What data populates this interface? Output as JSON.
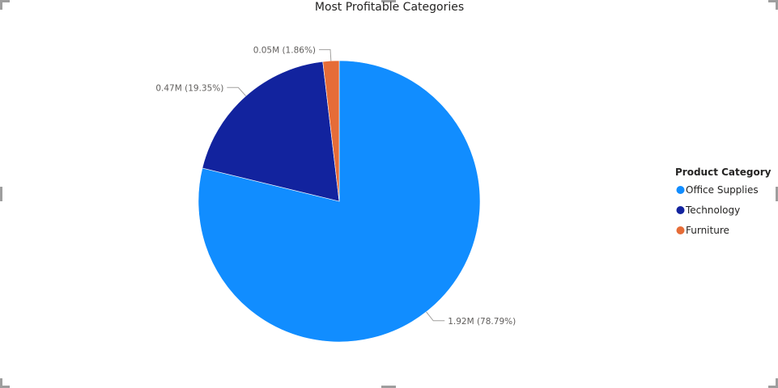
{
  "chart_data": {
    "type": "pie",
    "title": "Most Profitable Categories",
    "categories": [
      "Office Supplies",
      "Technology",
      "Furniture"
    ],
    "values": [
      1.92,
      0.47,
      0.05
    ],
    "percentages": [
      78.79,
      19.35,
      1.86
    ],
    "data_labels": [
      "1.92M (78.79%)",
      "0.47M (19.35%)",
      "0.05M (1.86%)"
    ],
    "colors": [
      "#118DFF",
      "#12239E",
      "#E66C37"
    ],
    "legend": {
      "title": "Product Category",
      "placement": "right"
    }
  }
}
